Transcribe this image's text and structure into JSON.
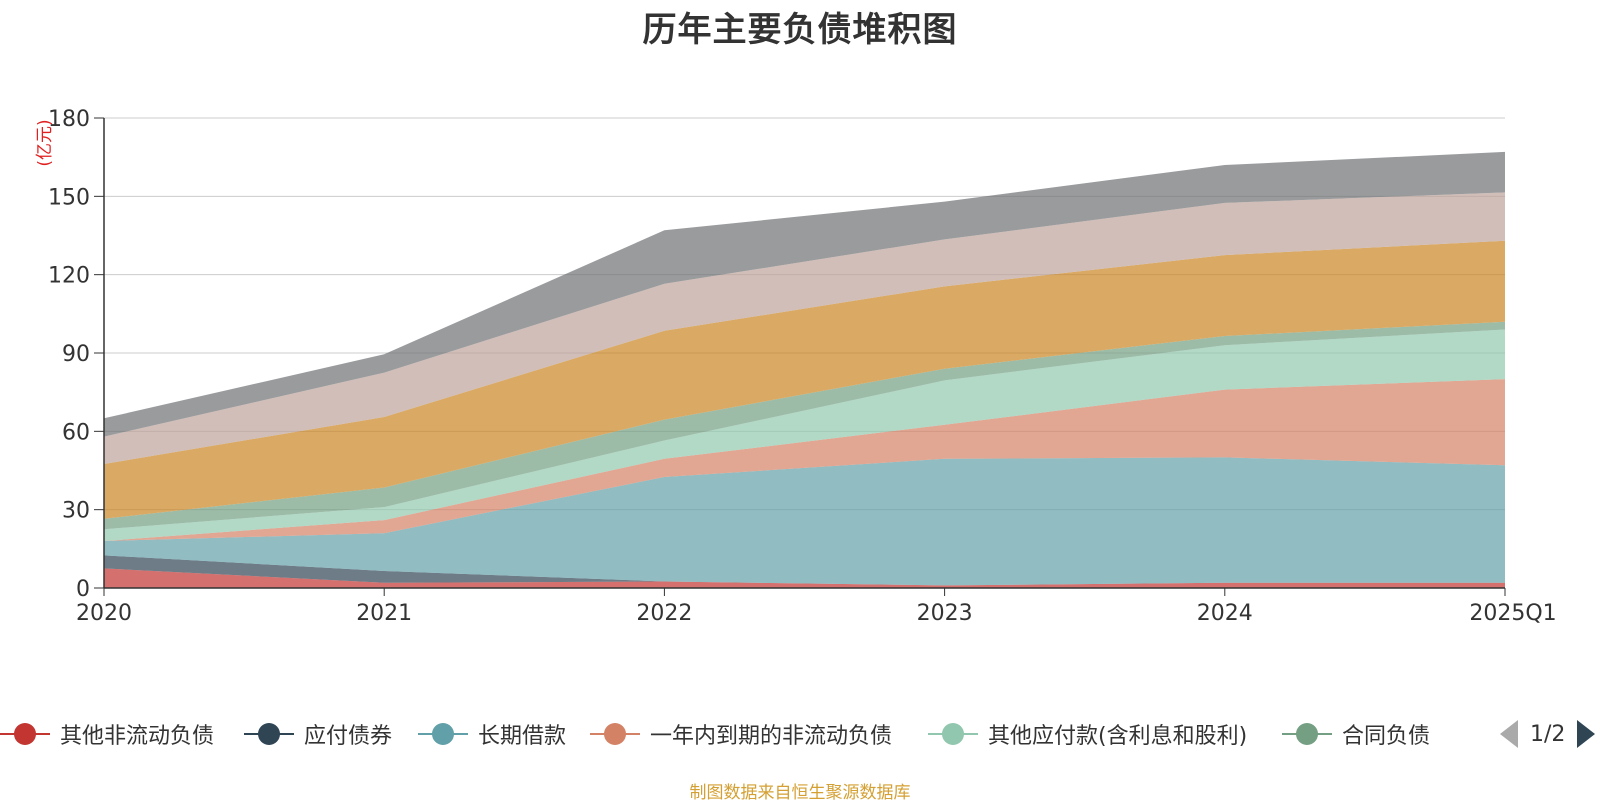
{
  "chart_data": {
    "type": "area",
    "stacked": true,
    "title": "历年主要负债堆积图",
    "unit_label": "(亿元)",
    "categories": [
      "2020",
      "2021",
      "2022",
      "2023",
      "2024",
      "2025Q1"
    ],
    "ylim": [
      0,
      180
    ],
    "yticks": [
      0,
      30,
      60,
      90,
      120,
      150,
      180
    ],
    "grid": true,
    "legend_position": "bottom",
    "series": [
      {
        "name": "其他非流动负债",
        "color": "#c23531",
        "values": [
          7.5,
          2.0,
          2.5,
          1.0,
          2.0,
          2.0
        ]
      },
      {
        "name": "应付债券",
        "color": "#2f4554",
        "values": [
          5.0,
          4.5,
          0.0,
          0.0,
          0.0,
          0.0
        ]
      },
      {
        "name": "长期借款",
        "color": "#61a0a8",
        "values": [
          5.5,
          14.5,
          40.0,
          48.5,
          48.0,
          45.0
        ]
      },
      {
        "name": "一年内到期的非流动负债",
        "color": "#d48265",
        "values": [
          0.0,
          5.0,
          7.0,
          13.0,
          26.0,
          33.0
        ]
      },
      {
        "name": "其他应付款(含利息和股利)",
        "color": "#91c7ae",
        "values": [
          4.5,
          5.0,
          7.0,
          17.0,
          17.0,
          19.0
        ]
      },
      {
        "name": "合同负债",
        "color": "#749f83",
        "values": [
          4.0,
          7.5,
          8.0,
          4.5,
          3.5,
          3.0
        ]
      },
      {
        "name": "",
        "color": "#ca8622",
        "values": [
          21.0,
          27.0,
          34.0,
          31.5,
          31.0,
          31.0
        ]
      },
      {
        "name": "",
        "color": "#bda29a",
        "values": [
          10.5,
          17.0,
          18.0,
          18.0,
          20.0,
          18.5
        ]
      },
      {
        "name": "",
        "color": "#6e7074",
        "values": [
          7.0,
          7.0,
          20.5,
          14.5,
          14.5,
          15.5
        ]
      }
    ]
  },
  "legend": {
    "page": "1/2",
    "items": [
      {
        "label": "其他非流动负债",
        "color": "#c23531"
      },
      {
        "label": "应付债券",
        "color": "#2f4554"
      },
      {
        "label": "长期借款",
        "color": "#61a0a8"
      },
      {
        "label": "一年内到期的非流动负债",
        "color": "#d48265"
      },
      {
        "label": "其他应付款(含利息和股利)",
        "color": "#91c7ae"
      },
      {
        "label": "合同负债",
        "color": "#749f83"
      }
    ]
  },
  "footer": {
    "source": "制图数据来自恒生聚源数据库"
  }
}
